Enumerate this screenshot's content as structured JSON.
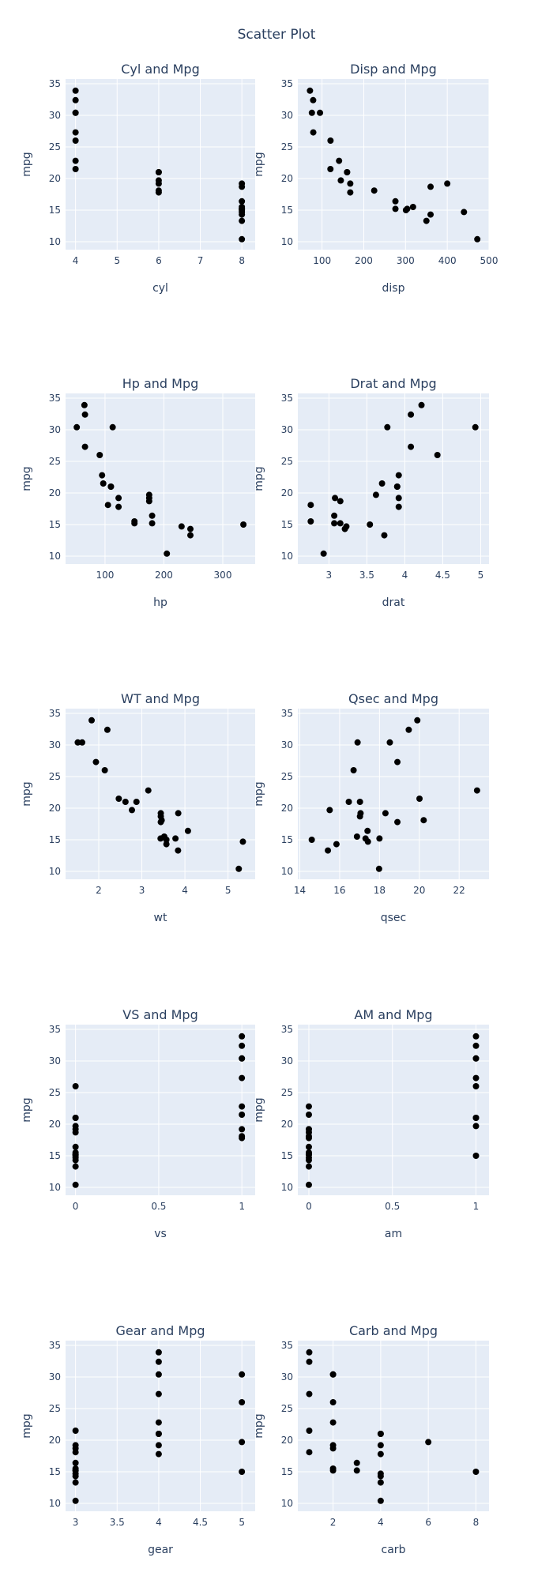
{
  "chart_data": {
    "type": "scatter",
    "title": "Scatter Plot",
    "marker_color": "#000000",
    "plot_bg": "#E5ECF6",
    "text_color": "#2a3f5f",
    "grid": true,
    "y_name": "mpg",
    "y_values": [
      21,
      21,
      18.1,
      18.7,
      14.3,
      22.8,
      19.2,
      17.8,
      16.4,
      15.2,
      10.4,
      14.7,
      32.4,
      30.4,
      33.9,
      21.5,
      15.5,
      15.2,
      13.3,
      19.2,
      27.3,
      26,
      30.4,
      19.7,
      15
    ],
    "y_range": [
      8.75,
      35.75
    ],
    "y_ticks": [
      10,
      15,
      20,
      25,
      30,
      35
    ],
    "subplots": [
      {
        "title": "Cyl and Mpg",
        "xlabel": "cyl",
        "ylabel": "mpg",
        "x_range": [
          3.76,
          8.32
        ],
        "x_ticks": [
          4,
          5,
          6,
          7,
          8
        ],
        "x_values": [
          6,
          6,
          6,
          8,
          8,
          4,
          6,
          6,
          8,
          8,
          8,
          8,
          4,
          4,
          4,
          4,
          8,
          8,
          8,
          8,
          4,
          4,
          4,
          6,
          8
        ]
      },
      {
        "title": "Disp and Mpg",
        "xlabel": "disp",
        "ylabel": "mpg",
        "x_range": [
          42,
          500
        ],
        "x_ticks": [
          100,
          200,
          300,
          400,
          500
        ],
        "x_values": [
          160,
          160,
          225,
          360,
          360,
          140.8,
          167.6,
          167.6,
          275.8,
          275.8,
          472,
          440,
          78.7,
          75.7,
          71.1,
          120.1,
          318,
          304,
          350,
          400,
          79,
          120.3,
          95.1,
          145,
          301
        ]
      },
      {
        "title": "Hp and Mpg",
        "xlabel": "hp",
        "ylabel": "mpg",
        "x_range": [
          33,
          355
        ],
        "x_ticks": [
          100,
          200,
          300
        ],
        "x_values": [
          110,
          110,
          105,
          175,
          245,
          95,
          123,
          123,
          180,
          180,
          205,
          230,
          66,
          52,
          65,
          97,
          150,
          150,
          245,
          175,
          66,
          91,
          113,
          175,
          335
        ]
      },
      {
        "title": "Drat and Mpg",
        "xlabel": "drat",
        "ylabel": "mpg",
        "x_range": [
          2.59,
          5.11
        ],
        "x_ticks": [
          3,
          3.5,
          4,
          4.5,
          5
        ],
        "x_values": [
          3.9,
          3.9,
          2.76,
          3.15,
          3.21,
          3.92,
          3.92,
          3.92,
          3.07,
          3.07,
          2.93,
          3.23,
          4.08,
          4.93,
          4.22,
          3.7,
          2.76,
          3.15,
          3.73,
          3.08,
          4.08,
          4.43,
          3.77,
          3.62,
          3.54
        ]
      },
      {
        "title": "WT and Mpg",
        "xlabel": "wt",
        "ylabel": "mpg",
        "x_range": [
          1.23,
          5.63
        ],
        "x_ticks": [
          2,
          3,
          4,
          5
        ],
        "x_values": [
          2.62,
          2.875,
          3.46,
          3.44,
          3.57,
          3.15,
          3.44,
          3.44,
          4.07,
          3.78,
          5.25,
          5.345,
          2.2,
          1.615,
          1.835,
          2.465,
          3.52,
          3.435,
          3.84,
          3.845,
          1.935,
          2.14,
          1.513,
          2.77,
          3.57
        ]
      },
      {
        "title": "Qsec and Mpg",
        "xlabel": "qsec",
        "ylabel": "mpg",
        "x_range": [
          13.9,
          23.5
        ],
        "x_ticks": [
          14,
          16,
          18,
          20,
          22
        ],
        "x_values": [
          16.46,
          17.02,
          20.22,
          17.02,
          15.84,
          22.9,
          18.3,
          18.9,
          17.4,
          18,
          17.98,
          17.42,
          19.47,
          18.52,
          19.9,
          20.01,
          16.87,
          17.3,
          15.41,
          17.05,
          18.9,
          16.7,
          16.9,
          15.5,
          14.6
        ]
      },
      {
        "title": "VS and Mpg",
        "xlabel": "vs",
        "ylabel": "mpg",
        "x_range": [
          -0.06,
          1.08
        ],
        "x_ticks": [
          0,
          0.5,
          1
        ],
        "x_values": [
          0,
          0,
          1,
          0,
          0,
          1,
          1,
          1,
          0,
          0,
          0,
          0,
          1,
          1,
          1,
          1,
          0,
          0,
          0,
          0,
          1,
          0,
          1,
          0,
          0
        ]
      },
      {
        "title": "AM and Mpg",
        "xlabel": "am",
        "ylabel": "mpg",
        "x_range": [
          -0.066,
          1.078
        ],
        "x_ticks": [
          0,
          0.5,
          1
        ],
        "x_values": [
          1,
          1,
          0,
          0,
          0,
          0,
          0,
          0,
          0,
          0,
          0,
          0,
          1,
          1,
          1,
          0,
          0,
          0,
          0,
          0,
          1,
          1,
          1,
          1,
          1
        ]
      },
      {
        "title": "Gear and Mpg",
        "xlabel": "gear",
        "ylabel": "mpg",
        "x_range": [
          2.88,
          5.16
        ],
        "x_ticks": [
          3,
          3.5,
          4,
          4.5,
          5
        ],
        "x_values": [
          4,
          4,
          3,
          3,
          3,
          4,
          4,
          4,
          3,
          3,
          3,
          3,
          4,
          4,
          4,
          3,
          3,
          3,
          3,
          3,
          4,
          5,
          5,
          5,
          5
        ]
      },
      {
        "title": "Carb and Mpg",
        "xlabel": "carb",
        "ylabel": "mpg",
        "x_range": [
          0.52,
          8.55
        ],
        "x_ticks": [
          2,
          4,
          6,
          8
        ],
        "x_values": [
          4,
          4,
          1,
          2,
          4,
          2,
          4,
          4,
          3,
          3,
          4,
          4,
          1,
          2,
          1,
          1,
          2,
          2,
          4,
          2,
          1,
          2,
          2,
          6,
          8
        ]
      }
    ]
  }
}
